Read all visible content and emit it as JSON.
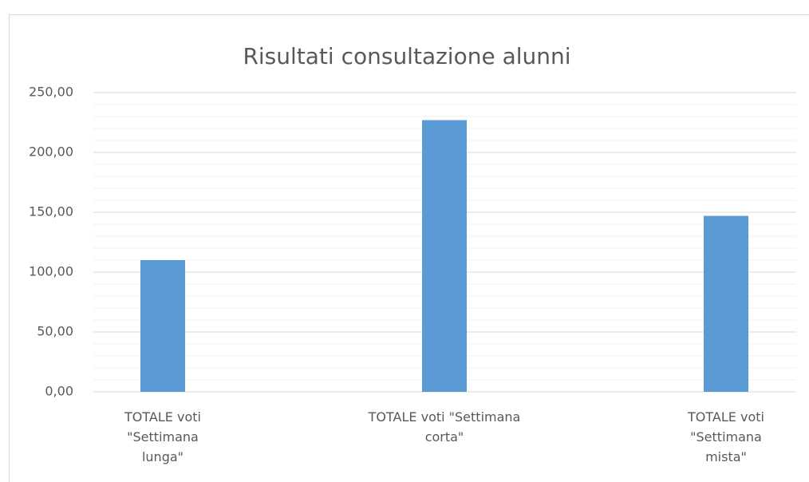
{
  "chart_data": {
    "type": "bar",
    "title": "Risultati consultazione alunni",
    "categories": [
      "TOTALE voti \"Settimana lunga\"",
      "TOTALE voti \"Settimana corta\"",
      "TOTALE voti \"Settimana mista\""
    ],
    "values": [
      110,
      227,
      147
    ],
    "color": "#5b9bd5",
    "ylim": [
      0,
      250
    ],
    "yticks": [
      {
        "value": 0,
        "label": "0,00"
      },
      {
        "value": 50,
        "label": "50,00"
      },
      {
        "value": 100,
        "label": "100,00"
      },
      {
        "value": 150,
        "label": "150,00"
      },
      {
        "value": 200,
        "label": "200,00"
      },
      {
        "value": 250,
        "label": "250,00"
      }
    ],
    "yminorticks": [
      10,
      20,
      30,
      40,
      60,
      70,
      80,
      90,
      110,
      120,
      130,
      140,
      160,
      170,
      180,
      190,
      210,
      220,
      230,
      240
    ],
    "grid": true
  }
}
